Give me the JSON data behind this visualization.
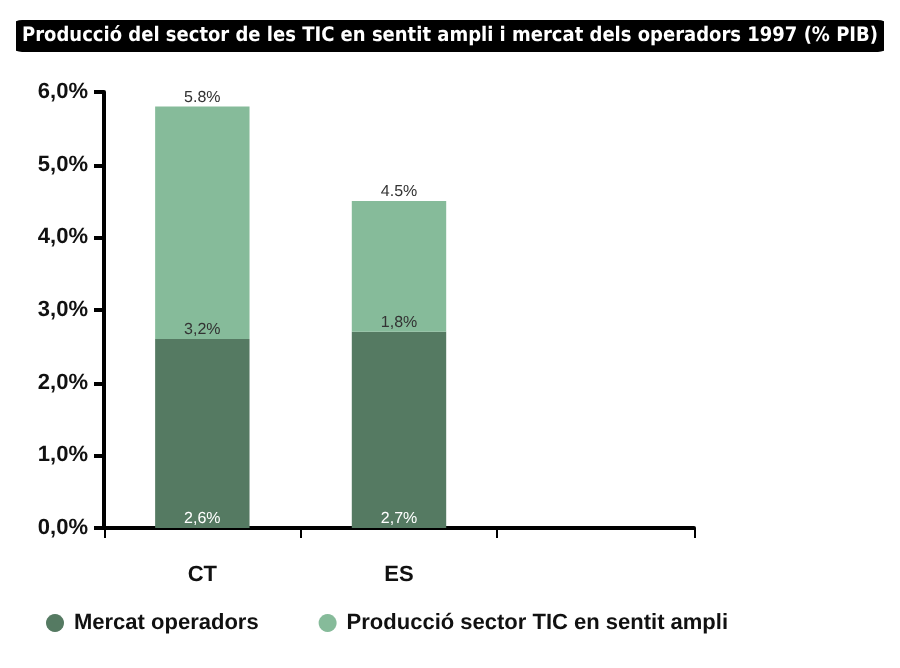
{
  "chart_data": {
    "type": "bar",
    "title": "Producció del sector de les TIC en sentit ampli i mercat dels operadors 1997 (% PIB)",
    "categories": [
      "CT",
      "ES",
      null
    ],
    "stacked": true,
    "series": [
      {
        "name": "Mercat operadors",
        "color": "#557a62",
        "values": [
          2.6,
          2.7,
          null
        ],
        "value_labels": [
          "2,6%",
          "2,7%",
          null
        ]
      },
      {
        "name": "Producció sector TIC en sentit ampli",
        "color": "#86bb9a",
        "values": [
          3.2,
          1.8,
          null
        ],
        "value_labels": [
          "3,2%",
          "1,8%",
          null
        ]
      }
    ],
    "totals": [
      "5.8%",
      "4.5%",
      null
    ],
    "ylim": [
      0,
      6
    ],
    "yticks": [
      {
        "value": 0,
        "label": "0,0%"
      },
      {
        "value": 1,
        "label": "1,0%"
      },
      {
        "value": 2,
        "label": "2,0%"
      },
      {
        "value": 3,
        "label": "3,0%"
      },
      {
        "value": 4,
        "label": "4,0%"
      },
      {
        "value": 5,
        "label": "5,0%"
      },
      {
        "value": 6,
        "label": "6,0%"
      }
    ],
    "grid": false,
    "legend": "bottom"
  }
}
